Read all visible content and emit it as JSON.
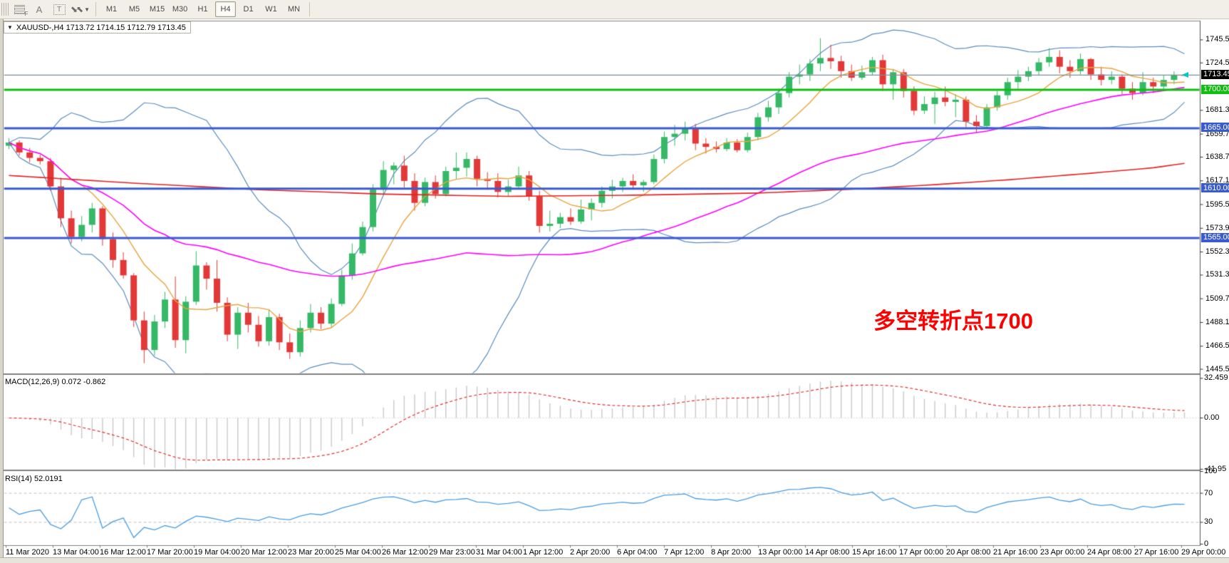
{
  "toolbar": {
    "tools": [
      {
        "name": "dotted-grid-tool",
        "glyph": "F"
      },
      {
        "name": "text-label-tool",
        "glyph": "A"
      },
      {
        "name": "text-box-tool",
        "glyph": "T"
      },
      {
        "name": "arrows-tool",
        "glyph": "⇅"
      }
    ],
    "timeframes": [
      "M1",
      "M5",
      "M15",
      "M30",
      "H1",
      "H4",
      "D1",
      "W1",
      "MN"
    ],
    "active_timeframe": "H4"
  },
  "chart": {
    "title": "XAUUSD-,H4  1713.72 1714.15 1712.79 1713.45",
    "symbol": "XAUUSD-",
    "period": "H4",
    "ohlc": {
      "open": "1713.72",
      "high": "1714.15",
      "low": "1712.79",
      "close": "1713.45"
    },
    "current_price": "1713.45",
    "annotation_text": "多空转折点1700",
    "price_ticks": [
      "1745.50",
      "1724.50",
      "1681.30",
      "1659.70",
      "1638.70",
      "1617.10",
      "1595.50",
      "1573.90",
      "1552.30",
      "1531.30",
      "1509.70",
      "1488.10",
      "1466.50",
      "1445.50"
    ],
    "hlines": [
      {
        "price": 1700.0,
        "label": "1700.00",
        "color": "#0fbe0f",
        "width": 3
      },
      {
        "price": 1665.0,
        "label": "1665.00",
        "color": "#3a5bd0",
        "width": 3
      },
      {
        "price": 1610.0,
        "label": "1610.00",
        "color": "#3a5bd0",
        "width": 3
      },
      {
        "price": 1565.0,
        "label": "1565.00",
        "color": "#3a5bd0",
        "width": 3
      }
    ],
    "time_labels": [
      "11 Mar 2020",
      "13 Mar 04:00",
      "16 Mar 12:00",
      "17 Mar 20:00",
      "19 Mar 04:00",
      "20 Mar 12:00",
      "23 Mar 20:00",
      "25 Mar 04:00",
      "26 Mar 12:00",
      "29 Mar 23:00",
      "31 Mar 04:00",
      "1 Apr 12:00",
      "2 Apr 20:00",
      "6 Apr 04:00",
      "7 Apr 12:00",
      "8 Apr 20:00",
      "13 Apr 00:00",
      "14 Apr 08:00",
      "15 Apr 16:00",
      "17 Apr 00:00",
      "20 Apr 08:00",
      "21 Apr 16:00",
      "23 Apr 00:00",
      "24 Apr 08:00",
      "27 Apr 16:00",
      "29 Apr 00:00"
    ]
  },
  "macd_panel": {
    "label": "MACD(12,26,9) 0.072 -0.862",
    "params": [
      12,
      26,
      9
    ],
    "value": 0.072,
    "signal_value": -0.862,
    "ticks": [
      {
        "v": 32.459,
        "label": "32.459"
      },
      {
        "v": 0,
        "label": "0.00"
      },
      {
        "v": -41.95,
        "label": "-41.95"
      }
    ]
  },
  "rsi_panel": {
    "label": "RSI(14) 52.0191",
    "period": 14,
    "value": 52.0191,
    "ticks": [
      {
        "v": 100,
        "label": "100"
      },
      {
        "v": 70,
        "label": "70"
      },
      {
        "v": 30,
        "label": "30"
      },
      {
        "v": 0,
        "label": "0"
      }
    ],
    "levels": [
      70,
      30
    ]
  },
  "chart_data": {
    "type": "candlestick",
    "symbol": "XAUUSD",
    "timeframe": "H4",
    "title": "XAUUSD-,H4",
    "x_range": [
      "11 Mar 2020",
      "29 Apr 2020"
    ],
    "y_range": [
      1442,
      1762
    ],
    "grid": false,
    "candles": [
      [
        1649,
        1656,
        1646,
        1652
      ],
      [
        1652,
        1654,
        1640,
        1643
      ],
      [
        1643,
        1647,
        1634,
        1638
      ],
      [
        1638,
        1641,
        1632,
        1635
      ],
      [
        1635,
        1638,
        1608,
        1612
      ],
      [
        1612,
        1620,
        1575,
        1583
      ],
      [
        1583,
        1590,
        1560,
        1566
      ],
      [
        1566,
        1585,
        1562,
        1577
      ],
      [
        1577,
        1597,
        1570,
        1592
      ],
      [
        1592,
        1594,
        1558,
        1564
      ],
      [
        1564,
        1570,
        1538,
        1545
      ],
      [
        1545,
        1552,
        1528,
        1531
      ],
      [
        1531,
        1533,
        1484,
        1490
      ],
      [
        1490,
        1498,
        1451,
        1463
      ],
      [
        1463,
        1495,
        1458,
        1489
      ],
      [
        1489,
        1516,
        1483,
        1509
      ],
      [
        1509,
        1530,
        1465,
        1472
      ],
      [
        1472,
        1512,
        1460,
        1507
      ],
      [
        1507,
        1553,
        1504,
        1540
      ],
      [
        1540,
        1543,
        1518,
        1528
      ],
      [
        1528,
        1545,
        1498,
        1506
      ],
      [
        1506,
        1511,
        1471,
        1477
      ],
      [
        1477,
        1502,
        1464,
        1497
      ],
      [
        1497,
        1506,
        1479,
        1486
      ],
      [
        1486,
        1494,
        1466,
        1471
      ],
      [
        1471,
        1500,
        1467,
        1493
      ],
      [
        1493,
        1496,
        1463,
        1470
      ],
      [
        1470,
        1478,
        1455,
        1461
      ],
      [
        1461,
        1490,
        1457,
        1483
      ],
      [
        1483,
        1505,
        1479,
        1497
      ],
      [
        1497,
        1502,
        1482,
        1487
      ],
      [
        1487,
        1510,
        1484,
        1505
      ],
      [
        1505,
        1536,
        1503,
        1531
      ],
      [
        1531,
        1560,
        1527,
        1551
      ],
      [
        1551,
        1580,
        1549,
        1575
      ],
      [
        1575,
        1614,
        1571,
        1609
      ],
      [
        1609,
        1635,
        1604,
        1627
      ],
      [
        1627,
        1634,
        1614,
        1631
      ],
      [
        1631,
        1640,
        1611,
        1617
      ],
      [
        1617,
        1624,
        1590,
        1597
      ],
      [
        1597,
        1620,
        1594,
        1616
      ],
      [
        1616,
        1622,
        1601,
        1605
      ],
      [
        1605,
        1630,
        1603,
        1626
      ],
      [
        1626,
        1643,
        1619,
        1629
      ],
      [
        1629,
        1643,
        1621,
        1637
      ],
      [
        1637,
        1640,
        1612,
        1619
      ],
      [
        1619,
        1625,
        1609,
        1617
      ],
      [
        1617,
        1624,
        1602,
        1607
      ],
      [
        1607,
        1618,
        1603,
        1612
      ],
      [
        1612,
        1630,
        1609,
        1622
      ],
      [
        1622,
        1626,
        1599,
        1603
      ],
      [
        1603,
        1608,
        1570,
        1576
      ],
      [
        1576,
        1590,
        1571,
        1578
      ],
      [
        1578,
        1588,
        1574,
        1584
      ],
      [
        1584,
        1592,
        1577,
        1580
      ],
      [
        1580,
        1600,
        1578,
        1591
      ],
      [
        1591,
        1601,
        1581,
        1597
      ],
      [
        1597,
        1612,
        1593,
        1608
      ],
      [
        1608,
        1618,
        1601,
        1612
      ],
      [
        1612,
        1620,
        1607,
        1617
      ],
      [
        1617,
        1623,
        1609,
        1613
      ],
      [
        1613,
        1618,
        1607,
        1616
      ],
      [
        1616,
        1641,
        1614,
        1637
      ],
      [
        1637,
        1662,
        1633,
        1657
      ],
      [
        1657,
        1668,
        1649,
        1660
      ],
      [
        1660,
        1671,
        1654,
        1665
      ],
      [
        1665,
        1669,
        1645,
        1651
      ],
      [
        1651,
        1656,
        1642,
        1648
      ],
      [
        1648,
        1653,
        1643,
        1646
      ],
      [
        1646,
        1656,
        1644,
        1652
      ],
      [
        1652,
        1655,
        1643,
        1645
      ],
      [
        1645,
        1661,
        1643,
        1657
      ],
      [
        1657,
        1679,
        1654,
        1675
      ],
      [
        1675,
        1690,
        1671,
        1684
      ],
      [
        1684,
        1701,
        1678,
        1697
      ],
      [
        1697,
        1716,
        1693,
        1712
      ],
      [
        1712,
        1723,
        1705,
        1714
      ],
      [
        1714,
        1728,
        1708,
        1724
      ],
      [
        1724,
        1747,
        1717,
        1729
      ],
      [
        1729,
        1741,
        1719,
        1726
      ],
      [
        1726,
        1731,
        1711,
        1717
      ],
      [
        1717,
        1723,
        1708,
        1711
      ],
      [
        1711,
        1722,
        1709,
        1716
      ],
      [
        1716,
        1730,
        1713,
        1727
      ],
      [
        1727,
        1732,
        1699,
        1705
      ],
      [
        1705,
        1719,
        1691,
        1716
      ],
      [
        1716,
        1719,
        1693,
        1699
      ],
      [
        1699,
        1703,
        1677,
        1681
      ],
      [
        1681,
        1694,
        1678,
        1687
      ],
      [
        1687,
        1698,
        1669,
        1693
      ],
      [
        1693,
        1703,
        1685,
        1689
      ],
      [
        1689,
        1696,
        1675,
        1691
      ],
      [
        1691,
        1694,
        1666,
        1671
      ],
      [
        1671,
        1677,
        1661,
        1667
      ],
      [
        1667,
        1687,
        1664,
        1684
      ],
      [
        1684,
        1699,
        1681,
        1695
      ],
      [
        1695,
        1711,
        1691,
        1707
      ],
      [
        1707,
        1718,
        1701,
        1712
      ],
      [
        1712,
        1721,
        1708,
        1717
      ],
      [
        1717,
        1729,
        1713,
        1725
      ],
      [
        1725,
        1738,
        1721,
        1730
      ],
      [
        1730,
        1736,
        1715,
        1721
      ],
      [
        1721,
        1727,
        1711,
        1717
      ],
      [
        1717,
        1733,
        1714,
        1728
      ],
      [
        1728,
        1729,
        1709,
        1714
      ],
      [
        1714,
        1721,
        1704,
        1709
      ],
      [
        1709,
        1717,
        1705,
        1712
      ],
      [
        1712,
        1714,
        1696,
        1701
      ],
      [
        1701,
        1707,
        1691,
        1697
      ],
      [
        1697,
        1716,
        1695,
        1707
      ],
      [
        1707,
        1711,
        1697,
        1703
      ],
      [
        1703,
        1713,
        1699,
        1709
      ],
      [
        1709,
        1717,
        1705,
        1713.7
      ],
      [
        1713.72,
        1714.15,
        1712.79,
        1713.45
      ]
    ],
    "overlays": {
      "bollinger": {
        "period": 20,
        "deviation": 2,
        "color": "#5b8cbe"
      },
      "ma_fast": {
        "period": 8,
        "color": "#e8a33d"
      },
      "ma_mid": {
        "period": 45,
        "color": "#ff00ff"
      },
      "ma_slow_points": [
        [
          0,
          1622
        ],
        [
          12,
          1615
        ],
        [
          24,
          1609
        ],
        [
          36,
          1605
        ],
        [
          48,
          1603
        ],
        [
          60,
          1604
        ],
        [
          72,
          1606
        ],
        [
          80,
          1609
        ],
        [
          88,
          1613
        ],
        [
          96,
          1618
        ],
        [
          104,
          1624
        ],
        [
          110,
          1629
        ],
        [
          113,
          1633
        ]
      ],
      "ma_slow_color": "#e32222"
    }
  },
  "colors": {
    "bull": "#35b966",
    "bear": "#e23838",
    "price_line": "#7e8b99",
    "price_tag_bg": "#000000",
    "macd_hist": "#c9c9c9",
    "macd_signal": "#e03030",
    "rsi_line": "#4a9de0",
    "level_dash": "#c0c0c0",
    "panel_border": "#808080",
    "axis_text": "#000000"
  }
}
